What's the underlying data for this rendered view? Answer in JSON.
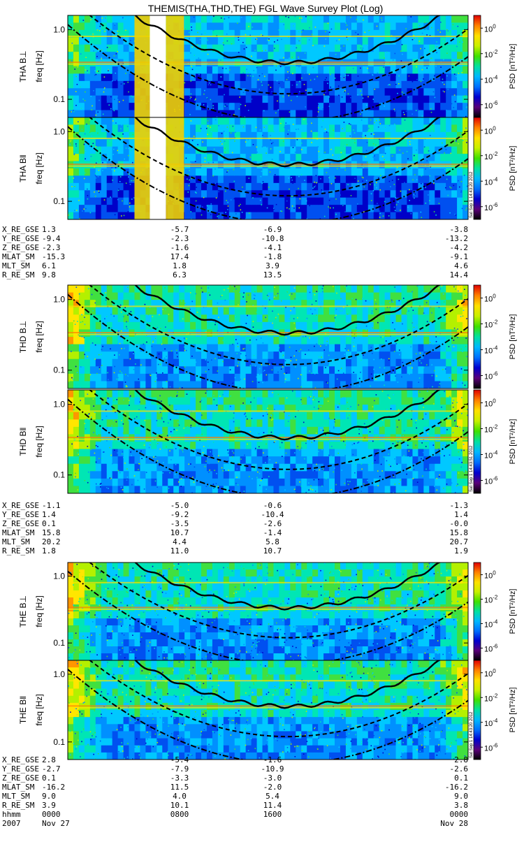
{
  "title": "THEMIS(THA,THD,THE) FGL Wave Survey Plot (Log)",
  "freq_axis": {
    "scale": "log",
    "range_hz": [
      0.055,
      1.6
    ],
    "ticks": [
      {
        "value": 1.0,
        "label": "1.0"
      },
      {
        "value": 0.1,
        "label": "0.1"
      }
    ],
    "label": "freq [Hz]"
  },
  "colorbar": {
    "scale": "log",
    "range": [
      1e-07,
      10
    ],
    "label": "PSD [nT²/Hz]",
    "ticks": [
      {
        "exp": 0,
        "base": "10",
        "sup": "0"
      },
      {
        "exp": -2,
        "base": "10",
        "sup": "-2"
      },
      {
        "exp": -4,
        "base": "10",
        "sup": "-4"
      },
      {
        "exp": -6,
        "base": "10",
        "sup": "-6"
      }
    ],
    "colors": [
      "#000000",
      "#5a007a",
      "#0000d0",
      "#0070ff",
      "#00b8ff",
      "#00e0a0",
      "#40e000",
      "#c8f000",
      "#ffe000",
      "#ff8000",
      "#e00000"
    ]
  },
  "groups": [
    {
      "probe": "THA",
      "panels": [
        {
          "label": "THA B⊥",
          "stamp": ""
        },
        {
          "label": "THA B‖",
          "stamp": "Sat Sep  1 14:43:20 2012"
        }
      ],
      "gap_x": [
        0.205,
        0.245
      ],
      "ephemeris": [
        {
          "name": "X_RE_GSE",
          "values": [
            "1.3",
            "-5.7",
            "-6.9",
            "-3.8"
          ]
        },
        {
          "name": "Y_RE_GSE",
          "values": [
            "-9.4",
            "-2.3",
            "-10.8",
            "-13.2"
          ]
        },
        {
          "name": "Z_RE_GSE",
          "values": [
            "-2.3",
            "-1.6",
            "-4.1",
            "-4.2"
          ]
        },
        {
          "name": "MLAT_SM",
          "values": [
            "-15.3",
            "17.4",
            "-1.8",
            "-9.1"
          ]
        },
        {
          "name": "MLT_SM",
          "values": [
            "6.1",
            "1.8",
            "3.9",
            "4.6"
          ]
        },
        {
          "name": "R_RE_SM",
          "values": [
            "9.8",
            "6.3",
            "13.5",
            "14.4"
          ]
        }
      ]
    },
    {
      "probe": "THD",
      "panels": [
        {
          "label": "THD B⊥",
          "stamp": ""
        },
        {
          "label": "THD B‖",
          "stamp": "Sat Sep  1 14:43:51 2012"
        }
      ],
      "ephemeris": [
        {
          "name": "X_RE_GSE",
          "values": [
            "-1.1",
            "-5.0",
            "-0.6",
            "-1.3"
          ]
        },
        {
          "name": "Y_RE_GSE",
          "values": [
            "1.4",
            "-9.2",
            "-10.4",
            "1.4"
          ]
        },
        {
          "name": "Z_RE_GSE",
          "values": [
            "0.1",
            "-3.5",
            "-2.6",
            "-0.0"
          ]
        },
        {
          "name": "MLAT_SM",
          "values": [
            "15.8",
            "10.7",
            "-1.4",
            "15.8"
          ]
        },
        {
          "name": "MLT_SM",
          "values": [
            "20.2",
            "4.4",
            "5.8",
            "20.7"
          ]
        },
        {
          "name": "R_RE_SM",
          "values": [
            "1.8",
            "11.0",
            "10.7",
            "1.9"
          ]
        }
      ]
    },
    {
      "probe": "THE",
      "panels": [
        {
          "label": "THE B⊥",
          "stamp": ""
        },
        {
          "label": "THE B‖",
          "stamp": "Sat Sep  1 14:43:20 2012"
        }
      ],
      "ephemeris": [
        {
          "name": "X_RE_GSE",
          "values": [
            "2.8",
            "-5.4",
            "-1.6",
            "2.8"
          ]
        },
        {
          "name": "Y_RE_GSE",
          "values": [
            "-2.7",
            "-7.9",
            "-10.9",
            "-2.6"
          ]
        },
        {
          "name": "Z_RE_GSE",
          "values": [
            "0.1",
            "-3.3",
            "-3.0",
            "0.1"
          ]
        },
        {
          "name": "MLAT_SM",
          "values": [
            "-16.2",
            "11.5",
            "-2.0",
            "-16.2"
          ]
        },
        {
          "name": "MLT_SM",
          "values": [
            "9.0",
            "4.0",
            "5.4",
            "9.0"
          ]
        },
        {
          "name": "R_RE_SM",
          "values": [
            "3.9",
            "10.1",
            "11.4",
            "3.8"
          ]
        }
      ]
    }
  ],
  "time_axis": {
    "rows": [
      {
        "name": "hhmm",
        "values": [
          "0000",
          "0800",
          "1600",
          "0000"
        ]
      },
      {
        "name": "2007",
        "values": [
          "Nov 27",
          "",
          "",
          "Nov 28"
        ]
      }
    ]
  },
  "chart_data": {
    "type": "heatmap",
    "title": "THEMIS(THA,THD,THE) FGL Wave Survey Plot (Log)",
    "x": [
      "0000",
      "0800",
      "1600",
      "0000"
    ],
    "x_dates": [
      "2007 Nov 27 00:00",
      "2007 Nov 27 08:00",
      "2007 Nov 27 16:00",
      "2007 Nov 28 00:00"
    ],
    "ylabel": "freq [Hz]",
    "yscale": "log",
    "ylim": [
      0.055,
      1.6
    ],
    "colorbar_label": "PSD [nT²/Hz]",
    "colorbar_range": [
      1e-07,
      10
    ],
    "panels": [
      "THA B⊥",
      "THA B‖",
      "THD B⊥",
      "THD B‖",
      "THE B⊥",
      "THE B‖"
    ],
    "overlay_lines": [
      "solid",
      "dashed",
      "dash-dot"
    ]
  }
}
